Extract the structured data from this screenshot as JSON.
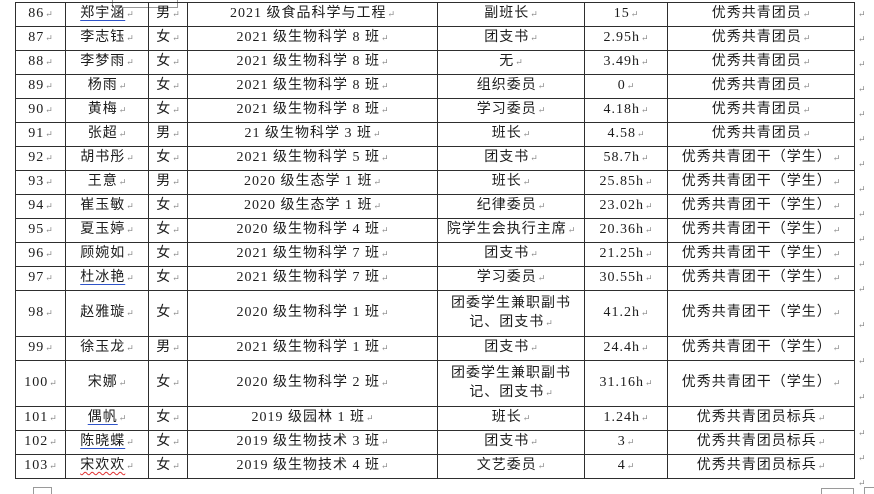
{
  "marks": {
    "cell_end": "↵"
  },
  "colors": {
    "table_border": "#2e2e2e",
    "text": "#1c1c1c",
    "underline_blue": "#2f54c9",
    "underline_red_wavy": "#e03030",
    "formatting_mark": "#8a8a8a"
  },
  "table": {
    "rows": [
      {
        "no": "86",
        "name": "郑宇涵",
        "gender": "男",
        "class_name": "2021 级食品科学与工程",
        "position": "副班长",
        "hours": "15",
        "award": "优秀共青团员",
        "underline": "blue",
        "tall": false
      },
      {
        "no": "87",
        "name": "李志钰",
        "gender": "女",
        "class_name": "2021 级生物科学 8 班",
        "position": "团支书",
        "hours": "2.95h",
        "award": "优秀共青团员",
        "underline": "none",
        "tall": false
      },
      {
        "no": "88",
        "name": "李梦雨",
        "gender": "女",
        "class_name": "2021 级生物科学 8 班",
        "position": "无",
        "hours": "3.49h",
        "award": "优秀共青团员",
        "underline": "none",
        "tall": false
      },
      {
        "no": "89",
        "name": "杨雨",
        "gender": "女",
        "class_name": "2021 级生物科学 8 班",
        "position": "组织委员",
        "hours": "0",
        "award": "优秀共青团员",
        "underline": "none",
        "tall": false
      },
      {
        "no": "90",
        "name": "黄梅",
        "gender": "女",
        "class_name": "2021 级生物科学 8 班",
        "position": "学习委员",
        "hours": "4.18h",
        "award": "优秀共青团员",
        "underline": "none",
        "tall": false
      },
      {
        "no": "91",
        "name": "张超",
        "gender": "男",
        "class_name": "21 级生物科学 3 班",
        "position": "班长",
        "hours": "4.58",
        "award": "优秀共青团员",
        "underline": "none",
        "tall": false
      },
      {
        "no": "92",
        "name": "胡书彤",
        "gender": "女",
        "class_name": "2021 级生物科学 5 班",
        "position": "团支书",
        "hours": "58.7h",
        "award": "优秀共青团干（学生）",
        "underline": "none",
        "tall": false
      },
      {
        "no": "93",
        "name": "王意",
        "gender": "男",
        "class_name": "2020 级生态学 1 班",
        "position": "班长",
        "hours": "25.85h",
        "award": "优秀共青团干（学生）",
        "underline": "none",
        "tall": false
      },
      {
        "no": "94",
        "name": "崔玉敏",
        "gender": "女",
        "class_name": "2020 级生态学 1 班",
        "position": "纪律委员",
        "hours": "23.02h",
        "award": "优秀共青团干（学生）",
        "underline": "none",
        "tall": false
      },
      {
        "no": "95",
        "name": "夏玉婷",
        "gender": "女",
        "class_name": "2020 级生物科学 4 班",
        "position": "院学生会执行主席",
        "hours": "20.36h",
        "award": "优秀共青团干（学生）",
        "underline": "none",
        "tall": false
      },
      {
        "no": "96",
        "name": "顾婉如",
        "gender": "女",
        "class_name": "2021 级生物科学 7 班",
        "position": "团支书",
        "hours": "21.25h",
        "award": "优秀共青团干（学生）",
        "underline": "none",
        "tall": false
      },
      {
        "no": "97",
        "name": "杜冰艳",
        "gender": "女",
        "class_name": "2021 级生物科学 7 班",
        "position": "学习委员",
        "hours": "30.55h",
        "award": "优秀共青团干（学生）",
        "underline": "blue",
        "tall": false
      },
      {
        "no": "98",
        "name": "赵雅璇",
        "gender": "女",
        "class_name": "2020 级生物科学 1 班",
        "position": "团委学生兼职副书记、团支书",
        "hours": "41.2h",
        "award": "优秀共青团干（学生）",
        "underline": "none",
        "tall": true
      },
      {
        "no": "99",
        "name": "徐玉龙",
        "gender": "男",
        "class_name": "2021 级生物科学 1 班",
        "position": "团支书",
        "hours": "24.4h",
        "award": "优秀共青团干（学生）",
        "underline": "none",
        "tall": false
      },
      {
        "no": "100",
        "name": "宋娜",
        "gender": "女",
        "class_name": "2020 级生物科学 2 班",
        "position": "团委学生兼职副书记、团支书",
        "hours": "31.16h",
        "award": "优秀共青团干（学生）",
        "underline": "none",
        "tall": true
      },
      {
        "no": "101",
        "name": "偶帆",
        "gender": "女",
        "class_name": "2019 级园林 1 班",
        "position": "班长",
        "hours": "1.24h",
        "award": "优秀共青团员标兵",
        "underline": "blue",
        "tall": false
      },
      {
        "no": "102",
        "name": "陈晓蝶",
        "gender": "女",
        "class_name": "2019 级生物技术 3 班",
        "position": "团支书",
        "hours": "3",
        "award": "优秀共青团员标兵",
        "underline": "blue",
        "tall": false
      },
      {
        "no": "103",
        "name": "宋欢欢",
        "gender": "女",
        "class_name": "2019 级生物技术 4 班",
        "position": "文艺委员",
        "hours": "4",
        "award": "优秀共青团员标兵",
        "underline": "red-wavy",
        "tall": false
      }
    ]
  }
}
